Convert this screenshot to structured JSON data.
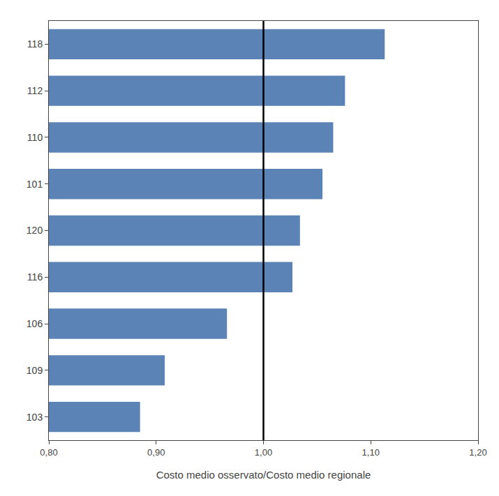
{
  "chart_data": {
    "type": "bar",
    "orientation": "horizontal",
    "categories": [
      "118",
      "112",
      "110",
      "101",
      "120",
      "116",
      "106",
      "109",
      "103"
    ],
    "values": [
      1.113,
      1.076,
      1.065,
      1.055,
      1.034,
      1.027,
      0.966,
      0.908,
      0.885
    ],
    "color": "#5b83b5",
    "xlabel": "Costo medio osservato/Costo medio regionale",
    "xlim": [
      0.8,
      1.2
    ],
    "xticks": [
      {
        "value": 0.8,
        "label": "0,80"
      },
      {
        "value": 0.9,
        "label": "0,90"
      },
      {
        "value": 1.0,
        "label": "1,00"
      },
      {
        "value": 1.1,
        "label": "1,10"
      },
      {
        "value": 1.2,
        "label": "1,20"
      }
    ],
    "reference_line": {
      "value": 1.0,
      "color": "black"
    },
    "grid": false
  }
}
